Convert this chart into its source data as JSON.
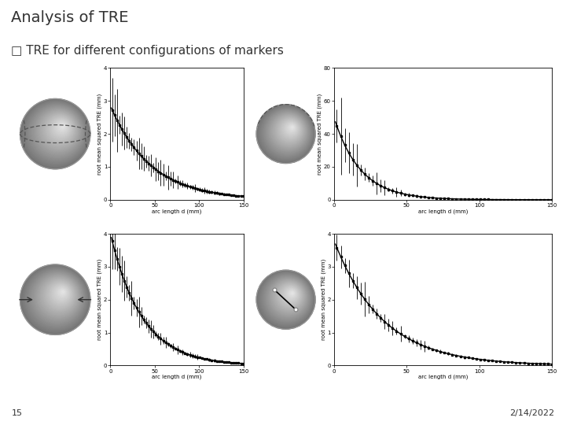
{
  "title": "Analysis of TRE",
  "subtitle": "□ TRE for different configurations of markers",
  "date": "2/14/2022",
  "slide_num": "15",
  "background_color": "#ffffff",
  "plots": [
    {
      "ylim": [
        0,
        4
      ],
      "yticks": [
        0,
        1,
        2,
        3,
        4
      ],
      "xlim": [
        0,
        150
      ],
      "xticks": [
        0,
        50,
        100,
        150
      ],
      "curve_start": 2.85,
      "curve_decay": 0.022,
      "err_scale": 0.85,
      "marker_type": "equatorial_4"
    },
    {
      "ylim": [
        0,
        80
      ],
      "yticks": [
        0,
        20,
        40,
        60,
        80
      ],
      "xlim": [
        0,
        150
      ],
      "xticks": [
        0,
        50,
        100,
        150
      ],
      "curve_start": 50.0,
      "curve_decay": 0.055,
      "err_scale": 20.0,
      "marker_type": "top_arc"
    },
    {
      "ylim": [
        0,
        4
      ],
      "yticks": [
        0,
        1,
        2,
        3,
        4
      ],
      "xlim": [
        0,
        150
      ],
      "xticks": [
        0,
        50,
        100,
        150
      ],
      "curve_start": 4.0,
      "curve_decay": 0.028,
      "err_scale": 0.75,
      "marker_type": "equatorial_2"
    },
    {
      "ylim": [
        0,
        4
      ],
      "yticks": [
        0,
        1,
        2,
        3,
        4
      ],
      "xlim": [
        0,
        150
      ],
      "xticks": [
        0,
        50,
        100,
        150
      ],
      "curve_start": 3.8,
      "curve_decay": 0.03,
      "err_scale": 0.65,
      "marker_type": "diagonal"
    }
  ],
  "ylabel": "root mean squared TRE (mm)",
  "xlabel": "arc length d (mm)",
  "title_fontsize": 14,
  "subtitle_fontsize": 11,
  "footer_fontsize": 8,
  "axis_label_fontsize": 5,
  "tick_fontsize": 5
}
